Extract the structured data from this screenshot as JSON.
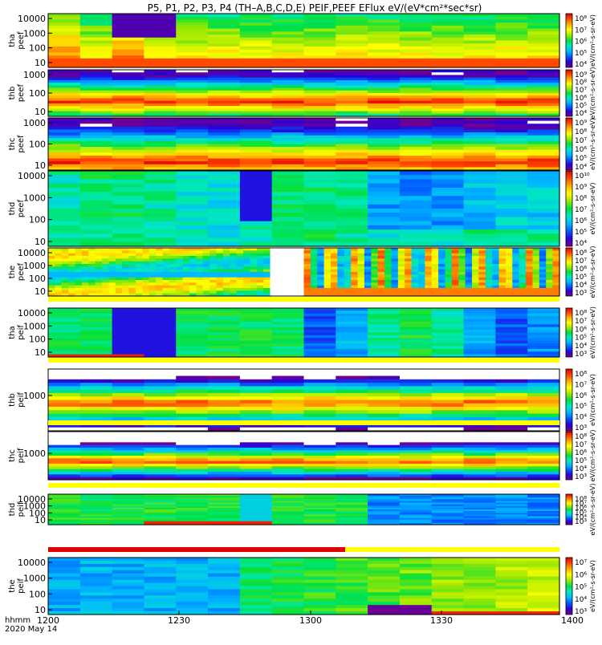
{
  "title": "P5, P1, P2, P3, P4 (TH–A,B,C,D,E) PEIF,PEEF EFlux eV/(eV*cm²*sec*sr)",
  "colors": {
    "ramp": [
      "#780088",
      "#2a00d8",
      "#005cff",
      "#00b8ff",
      "#00e8c0",
      "#00e040",
      "#a0e800",
      "#ffff00",
      "#ffb000",
      "#ff4a00",
      "#e00000"
    ],
    "flag_yellow": "#ffff00",
    "flag_red": "#e00000",
    "gap": "#ffffff"
  },
  "x_axis": {
    "ticks": [
      "1200",
      "1230",
      "1300",
      "1330",
      "1400"
    ],
    "footer_label": "hhmm",
    "footer_date": "2020 May 14"
  },
  "chart_data": [
    {
      "type": "heatmap",
      "probe": "tha",
      "product": "peef",
      "ylabel": [
        "tha",
        "peef"
      ],
      "scale": "log",
      "yticks": [
        "10000",
        "1000",
        "100",
        "10"
      ],
      "cbar_ticks": [
        "10⁸",
        "10⁷",
        "10⁶",
        "10⁵",
        "10⁴"
      ],
      "cbar_label": "eV/(cm²-s-sr-eV)",
      "x_start": "1200",
      "x_end": "1400"
    },
    {
      "type": "heatmap",
      "probe": "thb",
      "product": "peef",
      "ylabel": [
        "thb",
        "peef"
      ],
      "scale": "log",
      "yticks": [
        "1000",
        "100",
        "10"
      ],
      "cbar_ticks": [
        "10⁹",
        "10⁸",
        "10⁷",
        "10⁶",
        "10⁵",
        "10⁴"
      ],
      "cbar_label": "eV/(cm²-s-sr-eV)"
    },
    {
      "type": "heatmap",
      "probe": "thc",
      "product": "peef",
      "ylabel": [
        "thc",
        "peef"
      ],
      "scale": "log",
      "yticks": [
        "1000",
        "100",
        "10"
      ],
      "cbar_ticks": [
        "10⁹",
        "10⁸",
        "10⁷",
        "10⁶",
        "10⁵",
        "10⁴"
      ],
      "cbar_label": "eV/(cm²-s-sr-eV)"
    },
    {
      "type": "heatmap",
      "probe": "thd",
      "product": "peef",
      "ylabel": [
        "thd",
        "peef"
      ],
      "scale": "log",
      "yticks": [
        "10000",
        "1000",
        "100",
        "10"
      ],
      "cbar_ticks": [
        "10¹⁰",
        "10⁹",
        "10⁸",
        "10⁷",
        "10⁶",
        "10⁵",
        "10⁴"
      ],
      "cbar_label": "eV/(cm²-s-sr-eV)"
    },
    {
      "type": "heatmap",
      "probe": "the",
      "product": "peef",
      "ylabel": [
        "the",
        "peef"
      ],
      "scale": "log",
      "yticks": [
        "10000",
        "1000",
        "100",
        "10"
      ],
      "cbar_ticks": [
        "10⁸",
        "10⁷",
        "10⁶",
        "10⁵",
        "10⁴",
        "10³"
      ],
      "cbar_label": "eV/(cm²-s-sr-eV)"
    },
    {
      "type": "heatmap",
      "probe": "tha",
      "product": "peif",
      "ylabel": [
        "tha",
        "peif"
      ],
      "scale": "log",
      "yticks": [
        "10000",
        "1000",
        "100",
        "10"
      ],
      "cbar_ticks": [
        "10⁸",
        "10⁷",
        "10⁶",
        "10⁵",
        "10⁴",
        "10³"
      ],
      "cbar_label": "eV/(cm²-s-sr-eV)"
    },
    {
      "type": "heatmap",
      "probe": "thb",
      "product": "peif",
      "ylabel": [
        "thb",
        "peif"
      ],
      "scale": "log",
      "yticks": [
        "1000"
      ],
      "cbar_ticks": [
        "10⁸",
        "10⁷",
        "10⁶",
        "10⁵",
        "10⁴",
        "10³"
      ],
      "cbar_label": "eV/(cm²-s-sr-eV)"
    },
    {
      "type": "heatmap",
      "probe": "thc",
      "product": "peif",
      "ylabel": [
        "thc",
        "peif"
      ],
      "scale": "log",
      "yticks": [
        "1000"
      ],
      "cbar_ticks": [
        "10⁸",
        "10⁷",
        "10⁶",
        "10⁵",
        "10⁴",
        "10³"
      ],
      "cbar_label": "eV/(cm²-s-sr-eV)"
    },
    {
      "type": "heatmap",
      "probe": "thd",
      "product": "peif",
      "ylabel": [
        "thd",
        "peif"
      ],
      "scale": "log",
      "yticks": [
        "10000",
        "1000",
        "100",
        "10"
      ],
      "cbar_ticks": [
        "10⁸",
        "10⁷",
        "10⁶",
        "10⁵",
        "10⁴",
        "10³"
      ],
      "cbar_label": "eV/(cm²-s-sr-eV)"
    },
    {
      "type": "heatmap",
      "probe": "the",
      "product": "peif",
      "ylabel": [
        "the",
        "peif"
      ],
      "scale": "log",
      "yticks": [
        "10000",
        "1000",
        "100",
        "10"
      ],
      "cbar_ticks": [
        "10⁷",
        "10⁶",
        "10⁵",
        "10⁴",
        "10³"
      ],
      "cbar_label": "eV/(cm²-s-sr-eV)"
    }
  ]
}
